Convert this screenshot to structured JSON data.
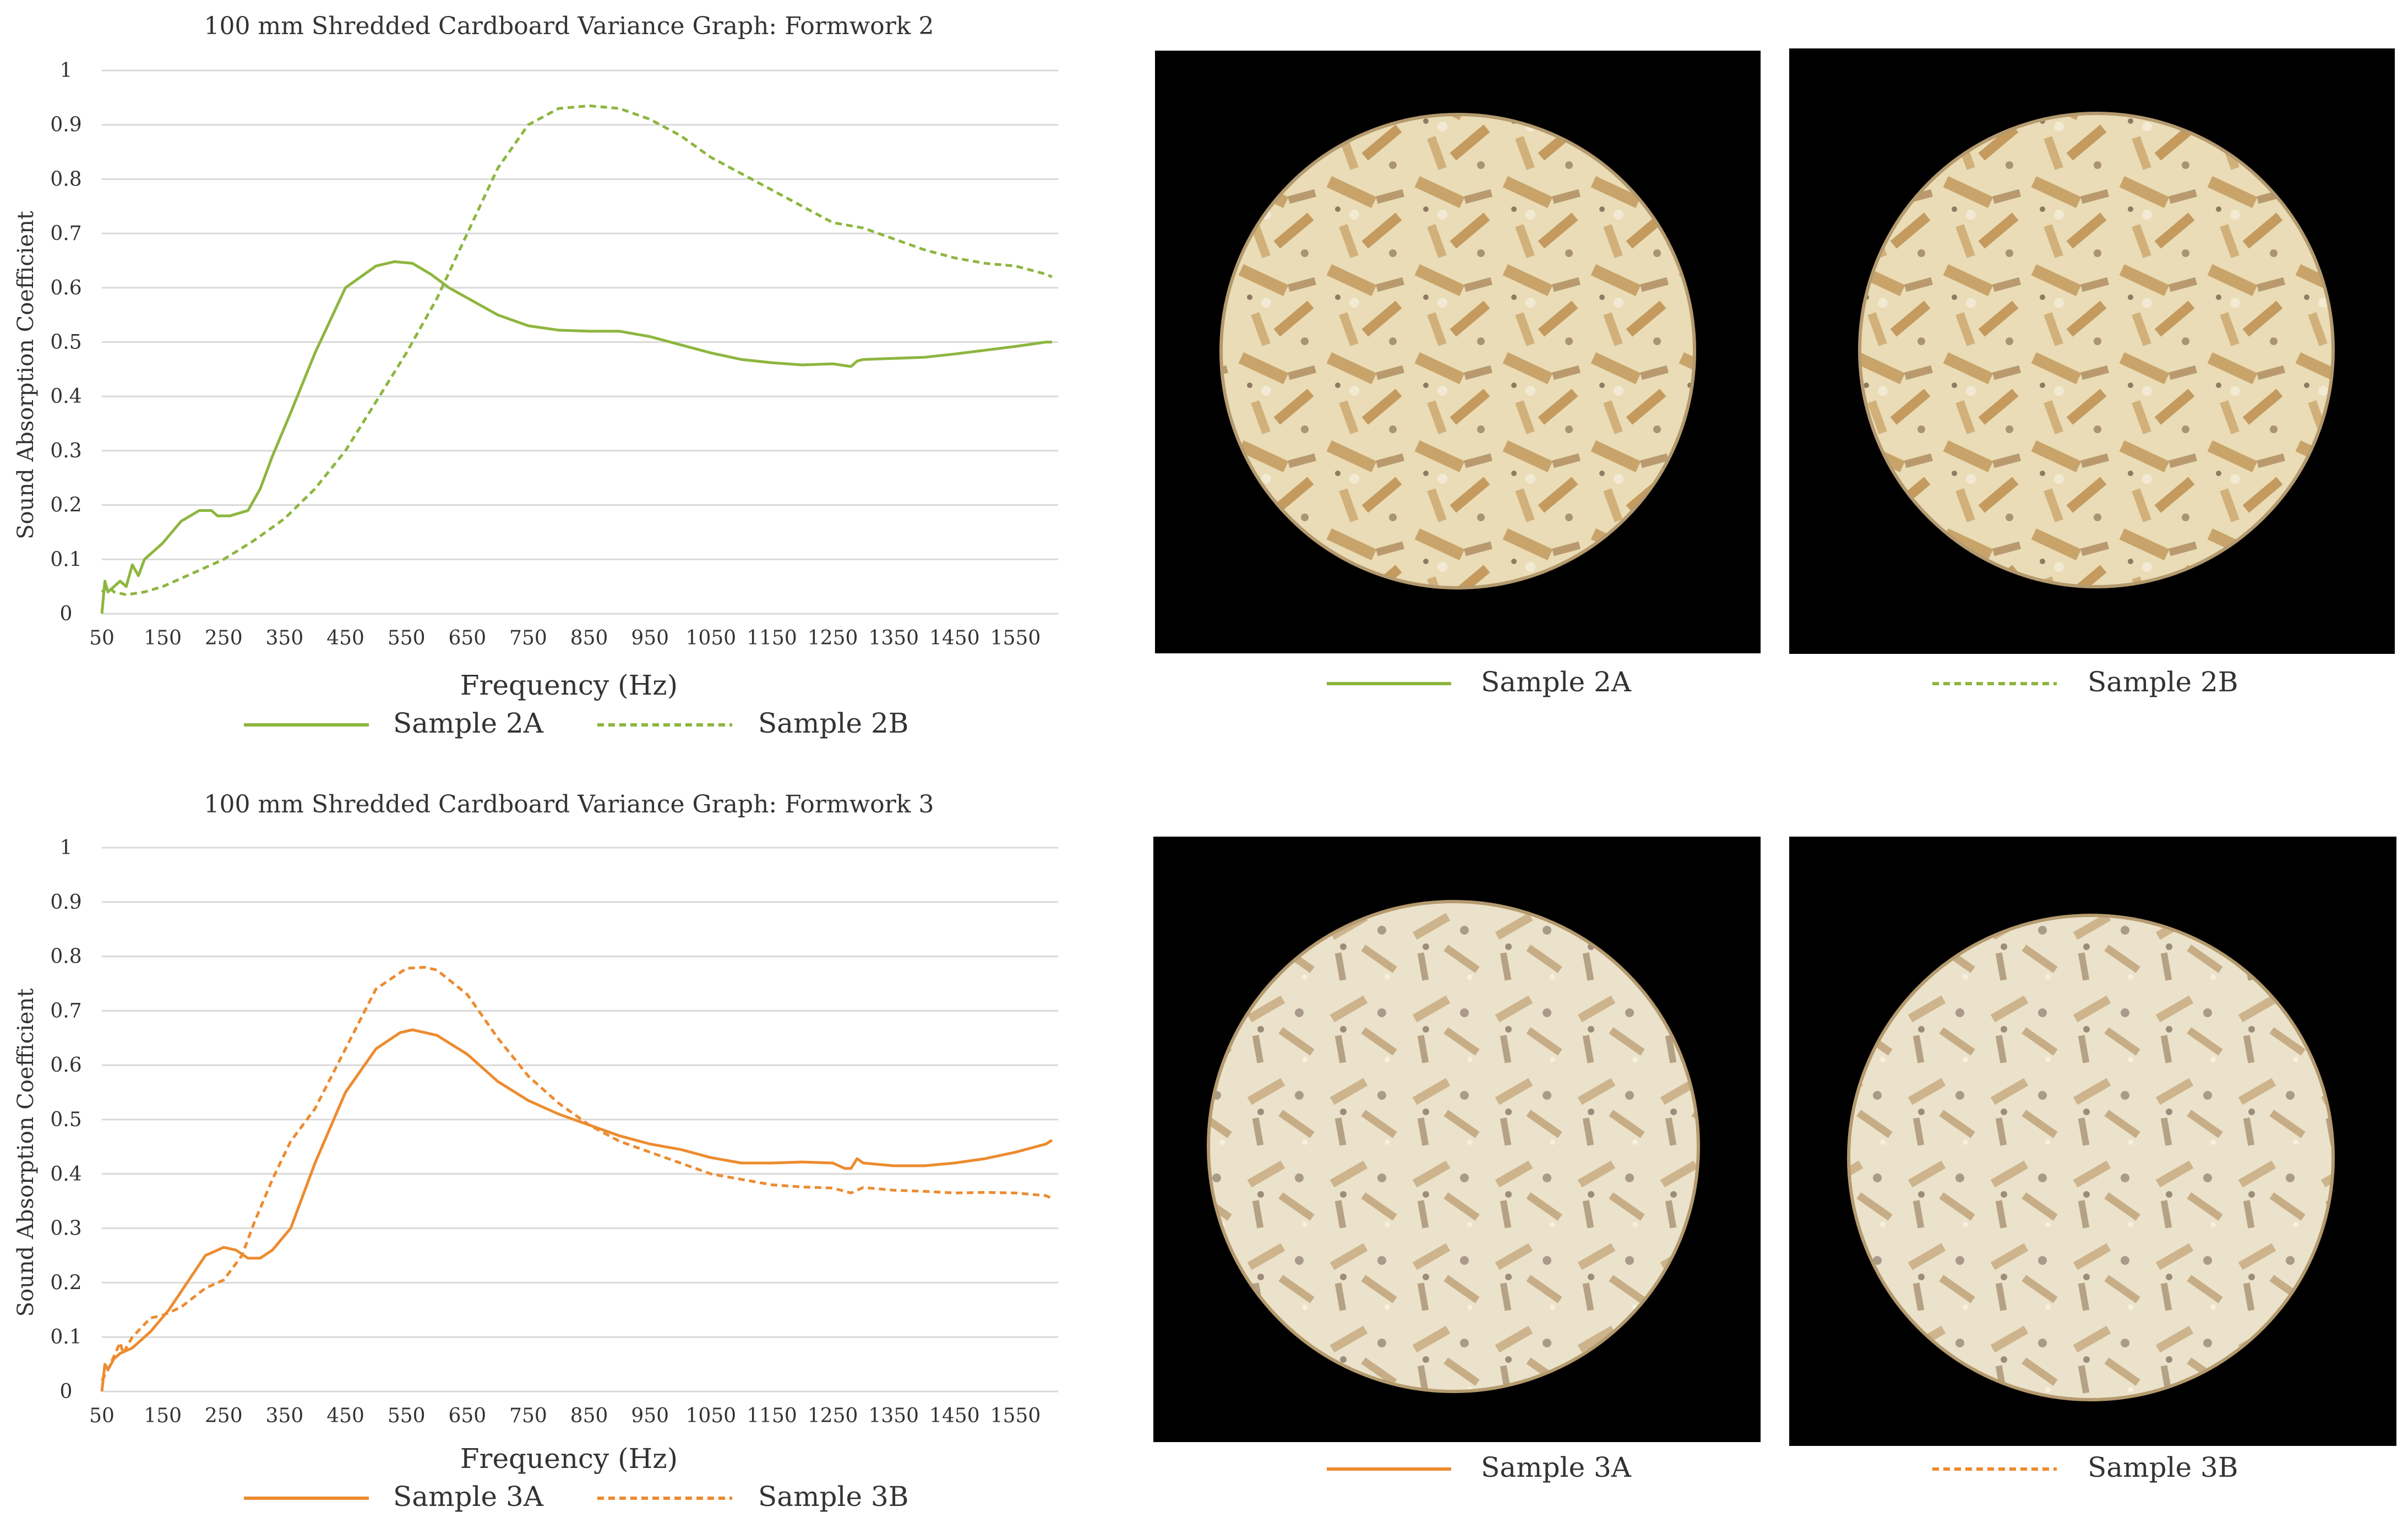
{
  "chart_data": [
    {
      "type": "line",
      "title": "100 mm Shredded Cardboard Variance Graph: Formwork 2",
      "xlabel": "Frequency (Hz)",
      "ylabel": "Sound Absorption Coefficient",
      "xlim": [
        50,
        1620
      ],
      "ylim": [
        0,
        1
      ],
      "xticks": [
        50,
        150,
        250,
        350,
        450,
        550,
        650,
        750,
        850,
        950,
        1050,
        1150,
        1250,
        1350,
        1450,
        1550
      ],
      "yticks": [
        0,
        0.1,
        0.2,
        0.3,
        0.4,
        0.5,
        0.6,
        0.7,
        0.8,
        0.9,
        1
      ],
      "ytick_labels": [
        "0",
        "0.1",
        "0.2",
        "0.3",
        "0.4",
        "0.5",
        "0.6",
        "0.7",
        "0.8",
        "0.9",
        "1"
      ],
      "grid": true,
      "series": [
        {
          "name": "Sample 2A",
          "color": "#8db63f",
          "dash": "solid",
          "x": [
            50,
            55,
            60,
            70,
            80,
            90,
            100,
            110,
            120,
            150,
            180,
            210,
            230,
            240,
            260,
            290,
            310,
            330,
            360,
            400,
            450,
            500,
            530,
            560,
            590,
            620,
            660,
            700,
            750,
            800,
            850,
            900,
            950,
            1000,
            1050,
            1100,
            1150,
            1200,
            1250,
            1280,
            1290,
            1300,
            1350,
            1400,
            1450,
            1500,
            1550,
            1600,
            1610
          ],
          "y": [
            0.0,
            0.06,
            0.04,
            0.05,
            0.06,
            0.05,
            0.09,
            0.07,
            0.1,
            0.13,
            0.17,
            0.19,
            0.19,
            0.18,
            0.18,
            0.19,
            0.23,
            0.29,
            0.37,
            0.48,
            0.6,
            0.64,
            0.648,
            0.645,
            0.625,
            0.6,
            0.575,
            0.55,
            0.53,
            0.522,
            0.52,
            0.52,
            0.51,
            0.495,
            0.48,
            0.468,
            0.462,
            0.458,
            0.46,
            0.455,
            0.465,
            0.468,
            0.47,
            0.472,
            0.478,
            0.485,
            0.492,
            0.5,
            0.5
          ]
        },
        {
          "name": "Sample 2B",
          "color": "#8db63f",
          "dash": "dashed",
          "x": [
            50,
            60,
            70,
            90,
            120,
            150,
            200,
            250,
            300,
            350,
            400,
            450,
            500,
            550,
            600,
            650,
            700,
            750,
            800,
            850,
            900,
            950,
            1000,
            1050,
            1100,
            1150,
            1200,
            1250,
            1300,
            1350,
            1400,
            1450,
            1500,
            1550,
            1600,
            1610
          ],
          "y": [
            0.04,
            0.05,
            0.04,
            0.035,
            0.04,
            0.05,
            0.075,
            0.1,
            0.135,
            0.175,
            0.23,
            0.3,
            0.39,
            0.48,
            0.58,
            0.7,
            0.82,
            0.9,
            0.93,
            0.935,
            0.93,
            0.91,
            0.88,
            0.84,
            0.81,
            0.78,
            0.75,
            0.72,
            0.71,
            0.69,
            0.67,
            0.655,
            0.645,
            0.64,
            0.625,
            0.62
          ]
        }
      ],
      "legend": [
        {
          "label": "Sample 2A"
        },
        {
          "label": "Sample 2B"
        }
      ]
    },
    {
      "type": "line",
      "title": "100 mm Shredded Cardboard Variance Graph: Formwork 3",
      "xlabel": "Frequency (Hz)",
      "ylabel": "Sound Absorption Coefficient",
      "xlim": [
        50,
        1620
      ],
      "ylim": [
        0,
        1
      ],
      "xticks": [
        50,
        150,
        250,
        350,
        450,
        550,
        650,
        750,
        850,
        950,
        1050,
        1150,
        1250,
        1350,
        1450,
        1550
      ],
      "yticks": [
        0,
        0.1,
        0.2,
        0.3,
        0.4,
        0.5,
        0.6,
        0.7,
        0.8,
        0.9,
        1
      ],
      "ytick_labels": [
        "0",
        "0.1",
        "0.2",
        "0.3",
        "0.4",
        "0.5",
        "0.6",
        "0.7",
        "0.8",
        "0.9",
        "1"
      ],
      "grid": true,
      "series": [
        {
          "name": "Sample 3A",
          "color": "#ed8b2f",
          "dash": "solid",
          "x": [
            50,
            55,
            60,
            70,
            80,
            100,
            130,
            160,
            190,
            220,
            250,
            270,
            290,
            310,
            330,
            360,
            400,
            450,
            500,
            540,
            560,
            600,
            650,
            700,
            750,
            800,
            850,
            900,
            950,
            1000,
            1050,
            1100,
            1150,
            1200,
            1250,
            1270,
            1280,
            1290,
            1300,
            1350,
            1400,
            1450,
            1500,
            1550,
            1600,
            1610
          ],
          "y": [
            0.0,
            0.05,
            0.04,
            0.06,
            0.07,
            0.08,
            0.11,
            0.15,
            0.2,
            0.25,
            0.265,
            0.26,
            0.245,
            0.245,
            0.26,
            0.3,
            0.42,
            0.55,
            0.63,
            0.66,
            0.665,
            0.655,
            0.62,
            0.57,
            0.535,
            0.51,
            0.49,
            0.47,
            0.455,
            0.445,
            0.43,
            0.42,
            0.42,
            0.422,
            0.42,
            0.41,
            0.41,
            0.428,
            0.42,
            0.415,
            0.415,
            0.42,
            0.428,
            0.44,
            0.455,
            0.462
          ]
        },
        {
          "name": "Sample 3B",
          "color": "#ed8b2f",
          "dash": "dashed",
          "x": [
            50,
            60,
            80,
            85,
            100,
            130,
            150,
            180,
            220,
            250,
            280,
            300,
            330,
            360,
            400,
            450,
            500,
            550,
            580,
            600,
            650,
            700,
            750,
            800,
            850,
            900,
            950,
            1000,
            1050,
            1100,
            1150,
            1200,
            1250,
            1280,
            1300,
            1350,
            1400,
            1450,
            1500,
            1550,
            1600,
            1610
          ],
          "y": [
            0.02,
            0.04,
            0.09,
            0.07,
            0.1,
            0.135,
            0.14,
            0.155,
            0.19,
            0.205,
            0.25,
            0.31,
            0.39,
            0.46,
            0.52,
            0.63,
            0.74,
            0.778,
            0.78,
            0.775,
            0.73,
            0.65,
            0.58,
            0.53,
            0.49,
            0.46,
            0.44,
            0.42,
            0.4,
            0.39,
            0.38,
            0.376,
            0.374,
            0.365,
            0.375,
            0.37,
            0.368,
            0.365,
            0.366,
            0.365,
            0.36,
            0.355
          ]
        }
      ],
      "legend": [
        {
          "label": "Sample 3A"
        },
        {
          "label": "Sample 3B"
        }
      ]
    }
  ],
  "photos": [
    {
      "label": "Sample 2A",
      "color": "#8db63f",
      "dash": "solid",
      "description_icon": "cardboard-disc-photo"
    },
    {
      "label": "Sample 2B",
      "color": "#8db63f",
      "dash": "dashed",
      "description_icon": "cardboard-disc-photo"
    },
    {
      "label": "Sample 3A",
      "color": "#ed8b2f",
      "dash": "solid",
      "description_icon": "cardboard-disc-photo"
    },
    {
      "label": "Sample 3B",
      "color": "#ed8b2f",
      "dash": "dashed",
      "description_icon": "cardboard-disc-photo"
    }
  ]
}
